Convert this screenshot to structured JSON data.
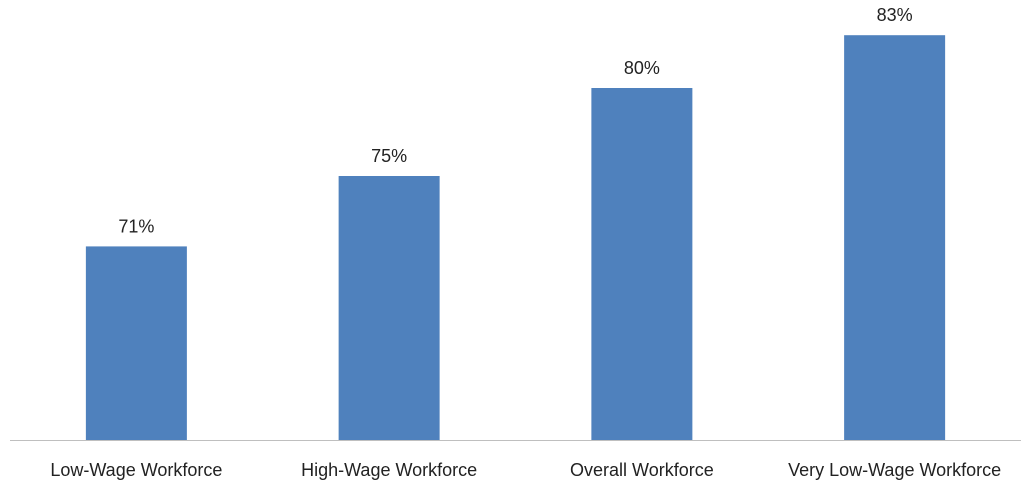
{
  "chart_data": {
    "type": "bar",
    "title": "",
    "xlabel": "",
    "ylabel": "",
    "categories": [
      "Low-Wage Workforce",
      "High-Wage Workforce",
      "Overall Workforce",
      "Very Low-Wage Workforce"
    ],
    "values": [
      71,
      75,
      80,
      83
    ],
    "value_labels": [
      "71%",
      "75%",
      "80%",
      "83%"
    ],
    "ylim": [
      60,
      85
    ],
    "grid": false,
    "legend": "none",
    "bar_color": "#4f81bd",
    "axis_color": "#bfbfbf"
  }
}
